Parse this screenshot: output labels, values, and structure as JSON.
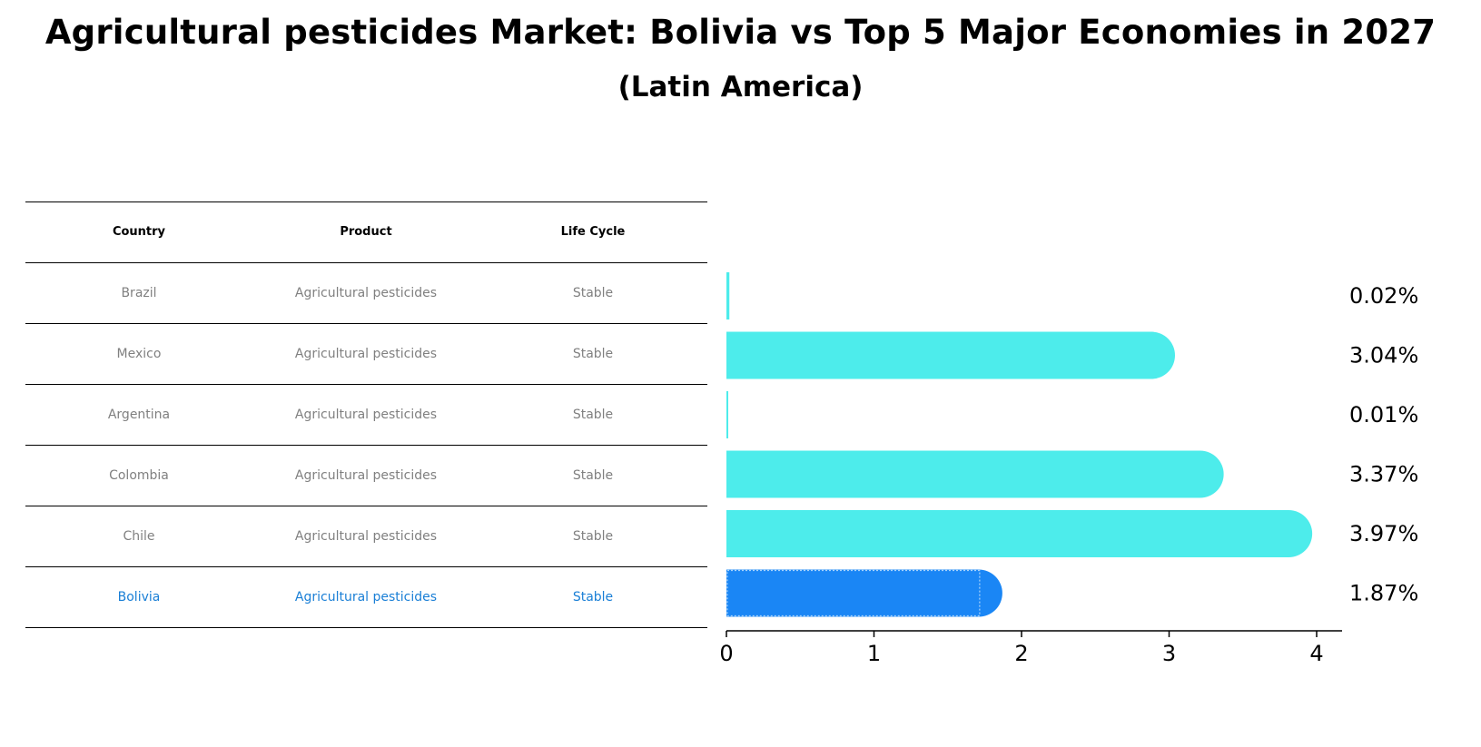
{
  "chart_data": {
    "type": "bar",
    "orientation": "horizontal",
    "title": "Agricultural pesticides Market: Bolivia vs Top 5 Major Economies in 2027",
    "subtitle": "(Latin America)",
    "categories": [
      "Brazil",
      "Mexico",
      "Argentina",
      "Colombia",
      "Chile",
      "Bolivia"
    ],
    "values": [
      0.02,
      3.04,
      0.01,
      3.37,
      3.97,
      1.87
    ],
    "value_labels": [
      "0.02%",
      "3.04%",
      "0.01%",
      "3.37%",
      "3.97%",
      "1.87%"
    ],
    "highlight": "Bolivia",
    "xlim": [
      0,
      4.17
    ],
    "xticks": [
      0,
      1,
      2,
      3,
      4
    ],
    "xtick_labels": [
      "0",
      "1",
      "2",
      "3",
      "4"
    ],
    "colors": {
      "default": "#4deceb",
      "highlight": "#1a86f5"
    }
  },
  "table": {
    "headers": [
      "Country",
      "Product",
      "Life Cycle"
    ],
    "rows": [
      [
        "Brazil",
        "Agricultural pesticides",
        "Stable"
      ],
      [
        "Mexico",
        "Agricultural pesticides",
        "Stable"
      ],
      [
        "Argentina",
        "Agricultural pesticides",
        "Stable"
      ],
      [
        "Colombia",
        "Agricultural pesticides",
        "Stable"
      ],
      [
        "Chile",
        "Agricultural pesticides",
        "Stable"
      ],
      [
        "Bolivia",
        "Agricultural pesticides",
        "Stable"
      ]
    ],
    "highlight_color": "#1a7fd6"
  }
}
